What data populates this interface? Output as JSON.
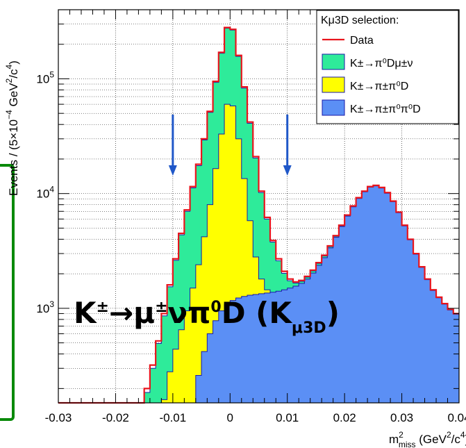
{
  "chart_data": {
    "type": "histogram",
    "scale_y": "log",
    "xlim": [
      -0.03,
      0.04
    ],
    "ylim": [
      150,
      400000
    ],
    "x_ticks": [
      "-0.03",
      "-0.02",
      "-0.01",
      "0",
      "0.01",
      "0.02",
      "0.03",
      "0.04"
    ],
    "y_ticks": [
      {
        "label": "10",
        "exp": "3",
        "value": 1000
      },
      {
        "label": "10",
        "exp": "4",
        "value": 10000
      },
      {
        "label": "10",
        "exp": "5",
        "value": 100000
      }
    ],
    "xlabel": "m²miss (GeV²/c⁴)",
    "ylabel": "Events / (5×10⁻⁴ GeV²/c⁴)",
    "grid": true,
    "legend_title": "Kμ3D selection:",
    "legend_position": "top-right",
    "cut_arrows_x": [
      -0.01,
      0.01
    ],
    "bin_centers": [
      -0.0295,
      -0.0285,
      -0.0275,
      -0.0265,
      -0.0255,
      -0.0245,
      -0.0235,
      -0.0225,
      -0.0215,
      -0.0205,
      -0.0195,
      -0.0185,
      -0.0175,
      -0.0165,
      -0.0155,
      -0.0145,
      -0.0135,
      -0.0125,
      -0.0115,
      -0.0105,
      -0.0095,
      -0.0085,
      -0.0075,
      -0.0065,
      -0.0055,
      -0.0045,
      -0.0035,
      -0.0025,
      -0.0015,
      -0.0005,
      0.0005,
      0.0015,
      0.0025,
      0.0035,
      0.0045,
      0.0055,
      0.0065,
      0.0075,
      0.0085,
      0.0095,
      0.0105,
      0.0115,
      0.0125,
      0.0135,
      0.0145,
      0.0155,
      0.0165,
      0.0175,
      0.0185,
      0.0195,
      0.0205,
      0.0215,
      0.0225,
      0.0235,
      0.0245,
      0.0255,
      0.0265,
      0.0275,
      0.0285,
      0.0295,
      0.0305,
      0.0315,
      0.0325,
      0.0335,
      0.0345,
      0.0355,
      0.0365,
      0.0375,
      0.0385,
      0.0395
    ],
    "series": [
      {
        "name": "Data",
        "role": "data",
        "color": "#e8141c",
        "values": [
          0,
          0,
          0,
          0,
          0,
          0,
          0,
          0,
          0,
          0,
          0,
          0,
          0,
          0,
          0,
          200,
          320,
          520,
          900,
          1600,
          2700,
          4500,
          7200,
          11500,
          18000,
          30000,
          52000,
          95000,
          170000,
          280000,
          270000,
          160000,
          85000,
          42000,
          21000,
          10500,
          6200,
          3900,
          2700,
          2100,
          1800,
          1700,
          1750,
          1900,
          2150,
          2500,
          2900,
          3500,
          4300,
          5300,
          6500,
          7800,
          9200,
          10500,
          11500,
          11800,
          11300,
          10200,
          8600,
          6900,
          5300,
          4000,
          3000,
          2300,
          1800,
          1450,
          1250,
          1100,
          980,
          900
        ]
      },
      {
        "name": "K±→π⁰Dμ±ν",
        "role": "stack-top",
        "color": "#2eeb9a",
        "values": [
          0,
          0,
          0,
          0,
          0,
          0,
          0,
          0,
          0,
          0,
          0,
          0,
          0,
          0,
          0,
          185,
          300,
          495,
          860,
          1540,
          2620,
          4370,
          7000,
          11200,
          17500,
          29300,
          51000,
          93000,
          167000,
          276000,
          266000,
          157000,
          83000,
          41000,
          20400,
          10200,
          6000,
          3780,
          2600,
          2020,
          1740,
          1660,
          1720,
          1870,
          2120,
          2460,
          2860,
          3450,
          4250,
          5240,
          6430,
          7730,
          9120,
          10420,
          11420,
          11700,
          11200,
          10100,
          8520,
          6830,
          5240,
          3960,
          2970,
          2280,
          1780,
          1430,
          1235,
          1088,
          968,
          890
        ]
      },
      {
        "name": "K±→π±π⁰D",
        "role": "stack-mid",
        "color": "#ffff00",
        "values": [
          0,
          0,
          0,
          0,
          0,
          0,
          0,
          0,
          0,
          0,
          0,
          0,
          0,
          0,
          0,
          0,
          0,
          0,
          160,
          280,
          440,
          650,
          950,
          1500,
          2400,
          4200,
          8000,
          16500,
          33000,
          60000,
          58000,
          30000,
          13500,
          5800,
          2800,
          1800,
          1450,
          1350,
          1350,
          1400,
          1450,
          1500,
          1600,
          1750,
          2000,
          2350,
          2750,
          3350,
          4150,
          5150,
          6350,
          7650,
          9050,
          10350,
          11350,
          11650,
          11150,
          10050,
          8480,
          6800,
          5220,
          3950,
          2960,
          2270,
          1775,
          1428,
          1233,
          1086,
          966,
          888
        ]
      },
      {
        "name": "K±→π±π⁰π⁰D",
        "role": "stack-bottom",
        "color": "#5b8ff5",
        "values": [
          0,
          0,
          0,
          0,
          0,
          0,
          0,
          0,
          0,
          0,
          0,
          0,
          0,
          0,
          0,
          0,
          0,
          0,
          0,
          0,
          0,
          0,
          0,
          150,
          260,
          420,
          600,
          780,
          950,
          1080,
          1170,
          1230,
          1270,
          1300,
          1320,
          1340,
          1360,
          1380,
          1410,
          1450,
          1500,
          1560,
          1650,
          1800,
          2030,
          2370,
          2760,
          3360,
          4160,
          5160,
          6360,
          7660,
          9060,
          10360,
          11360,
          11660,
          11160,
          10060,
          8490,
          6810,
          5225,
          3952,
          2962,
          2272,
          1776,
          1429,
          1234,
          1087,
          967,
          889
        ]
      }
    ]
  },
  "overlay": {
    "title": {
      "main_prefix": "K",
      "sup1": "±",
      "arrow": "→μ",
      "sup2": "±",
      "mid": "νπ",
      "sup3": "0",
      "main_suffix": "D (K",
      "sub": "μ3D",
      "close": ")"
    }
  },
  "legend": {
    "title": "Kμ3D selection:",
    "entries": [
      "Data",
      "K±→π⁰Dμ±ν",
      "K±→π±π⁰D",
      "K±→π±π⁰π⁰D"
    ]
  },
  "colors": {
    "frame": "#0a8a0a"
  }
}
